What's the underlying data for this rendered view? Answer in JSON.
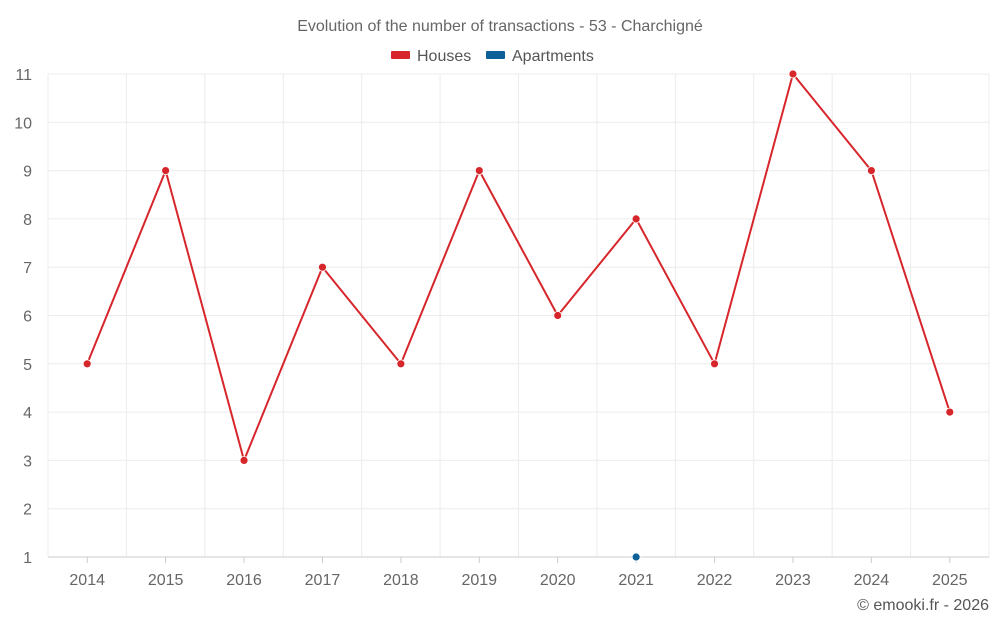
{
  "chart_data": {
    "type": "line",
    "title": "Evolution of the number of transactions - 53 - Charchigné",
    "categories": [
      "2014",
      "2015",
      "2016",
      "2017",
      "2018",
      "2019",
      "2020",
      "2021",
      "2022",
      "2023",
      "2024",
      "2025"
    ],
    "y_ticks": [
      "1",
      "2",
      "3",
      "4",
      "5",
      "6",
      "7",
      "8",
      "9",
      "10",
      "11"
    ],
    "ylim": [
      1,
      11
    ],
    "grid": true,
    "legend_position": "top-center",
    "series": [
      {
        "name": "Houses",
        "color": "#d7262b",
        "values": [
          5,
          9,
          3,
          7,
          5,
          9,
          6,
          8,
          5,
          11,
          9,
          4
        ]
      },
      {
        "name": "Apartments",
        "color": "#0b6197",
        "values": [
          null,
          null,
          null,
          null,
          null,
          null,
          null,
          1,
          null,
          null,
          null,
          null
        ]
      }
    ],
    "credit": "© emooki.fr - 2026"
  }
}
